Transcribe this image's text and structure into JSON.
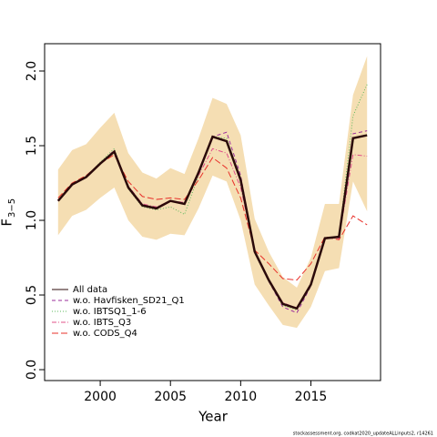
{
  "chart_data": {
    "type": "line",
    "x_label": "Year",
    "y_label": "F",
    "y_label_sub": "3−5",
    "footer": "stockassessment.org, codkat2020_updateALLinputs2, r14261",
    "x": [
      1997,
      1998,
      1999,
      2000,
      2001,
      2002,
      2003,
      2004,
      2005,
      2006,
      2007,
      2008,
      2009,
      2010,
      2011,
      2012,
      2013,
      2014,
      2015,
      2016,
      2017,
      2018,
      2019
    ],
    "band": {
      "color": "#f5deb3",
      "upper": [
        1.34,
        1.47,
        1.51,
        1.62,
        1.72,
        1.45,
        1.32,
        1.28,
        1.35,
        1.31,
        1.55,
        1.82,
        1.78,
        1.57,
        1.01,
        0.79,
        0.62,
        0.55,
        0.75,
        1.11,
        1.11,
        1.84,
        2.1
      ],
      "lower": [
        0.9,
        1.03,
        1.07,
        1.15,
        1.22,
        1.0,
        0.89,
        0.87,
        0.91,
        0.9,
        1.08,
        1.3,
        1.26,
        1.0,
        0.57,
        0.43,
        0.3,
        0.28,
        0.42,
        0.66,
        0.68,
        1.26,
        1.06
      ]
    },
    "series": [
      {
        "name": "All data",
        "color": "#2b0a0a",
        "dash": "solid",
        "width": 2.5,
        "values": [
          1.13,
          1.24,
          1.29,
          1.38,
          1.46,
          1.22,
          1.1,
          1.08,
          1.13,
          1.11,
          1.32,
          1.56,
          1.53,
          1.27,
          0.79,
          0.6,
          0.44,
          0.41,
          0.57,
          0.88,
          0.89,
          1.55,
          1.57
        ]
      },
      {
        "name": "w.o. Havfisken_SD21_Q1",
        "color": "#9b2f9b",
        "dash": "dashed",
        "width": 1,
        "values": [
          1.13,
          1.24,
          1.29,
          1.38,
          1.47,
          1.22,
          1.1,
          1.08,
          1.13,
          1.11,
          1.33,
          1.56,
          1.59,
          1.3,
          0.79,
          0.59,
          0.42,
          0.38,
          0.56,
          0.88,
          0.89,
          1.58,
          1.6
        ]
      },
      {
        "name": "w.o. IBTSQ1_1-6",
        "color": "#5cb85c",
        "dash": "dotted",
        "width": 1,
        "values": [
          1.13,
          1.24,
          1.29,
          1.39,
          1.48,
          1.21,
          1.09,
          1.07,
          1.09,
          1.04,
          1.3,
          1.56,
          1.55,
          1.28,
          0.78,
          0.59,
          0.43,
          0.4,
          0.56,
          0.88,
          0.89,
          1.7,
          1.91
        ]
      },
      {
        "name": "w.o. IBTS_Q3",
        "color": "#e0508a",
        "dash": "dashdot",
        "width": 1,
        "values": [
          1.13,
          1.24,
          1.29,
          1.38,
          1.46,
          1.23,
          1.11,
          1.09,
          1.13,
          1.12,
          1.3,
          1.48,
          1.45,
          1.22,
          0.79,
          0.6,
          0.45,
          0.41,
          0.57,
          0.88,
          0.88,
          1.44,
          1.43
        ]
      },
      {
        "name": "w.o. CODS_Q4",
        "color": "#e8302a",
        "dash": "longdash",
        "width": 1,
        "values": [
          1.15,
          1.25,
          1.3,
          1.38,
          1.44,
          1.26,
          1.16,
          1.14,
          1.15,
          1.14,
          1.27,
          1.42,
          1.35,
          1.15,
          0.8,
          0.71,
          0.61,
          0.6,
          0.71,
          0.89,
          0.87,
          1.03,
          0.97
        ]
      }
    ],
    "xlim": [
      1996.04,
      2019.96
    ],
    "ylim": [
      -0.073,
      2.183
    ],
    "xticks": [
      2000,
      2005,
      2010,
      2015
    ],
    "yticks": [
      {
        "value": 0,
        "label": "0.0"
      },
      {
        "value": 0.5,
        "label": "0.5"
      },
      {
        "value": 1,
        "label": "1.0"
      },
      {
        "value": 1.5,
        "label": "1.5"
      },
      {
        "value": 2,
        "label": "2.0"
      }
    ],
    "legend": "bottom-left"
  }
}
